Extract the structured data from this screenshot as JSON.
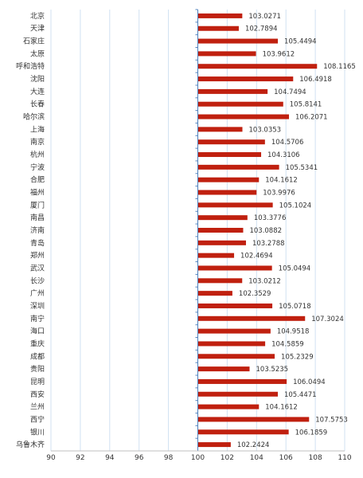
{
  "chart_data": {
    "type": "bar",
    "orientation": "horizontal",
    "categories": [
      "北京",
      "天津",
      "石家庄",
      "太原",
      "呼和浩特",
      "沈阳",
      "大连",
      "长春",
      "哈尔滨",
      "上海",
      "南京",
      "杭州",
      "宁波",
      "合肥",
      "福州",
      "厦门",
      "南昌",
      "济南",
      "青岛",
      "郑州",
      "武汉",
      "长沙",
      "广州",
      "深圳",
      "南宁",
      "海口",
      "重庆",
      "成都",
      "贵阳",
      "昆明",
      "西安",
      "兰州",
      "西宁",
      "银川",
      "乌鲁木齐"
    ],
    "values": [
      103.0271,
      102.7894,
      105.4494,
      103.9612,
      108.1165,
      106.4918,
      104.7494,
      105.8141,
      106.2071,
      103.0353,
      104.5706,
      104.3106,
      105.5341,
      104.1612,
      103.9976,
      105.1024,
      103.3776,
      103.0882,
      103.2788,
      102.4694,
      105.0494,
      103.0212,
      102.3529,
      105.0718,
      107.3024,
      104.9518,
      104.5859,
      105.2329,
      103.5235,
      106.0494,
      105.4471,
      104.1612,
      107.5753,
      106.1859,
      102.2424
    ],
    "value_labels": [
      "103.0271",
      "102.7894",
      "105.4494",
      "103.9612",
      "108.1165",
      "106.4918",
      "104.7494",
      "105.8141",
      "106.2071",
      "103.0353",
      "104.5706",
      "104.3106",
      "105.5341",
      "104.1612",
      "103.9976",
      "105.1024",
      "103.3776",
      "103.0882",
      "103.2788",
      "102.4694",
      "105.0494",
      "103.0212",
      "102.3529",
      "105.0718",
      "107.3024",
      "104.9518",
      "104.5859",
      "105.2329",
      "103.5235",
      "106.0494",
      "105.4471",
      "104.1612",
      "107.5753",
      "106.1859",
      "102.2424"
    ],
    "baseline": 100,
    "xlim": [
      90,
      110
    ],
    "x_ticks": [
      "90",
      "92",
      "94",
      "96",
      "98",
      "100",
      "102",
      "104",
      "106",
      "108",
      "110"
    ],
    "grid": true,
    "bar_color": "#C0200F",
    "grid_color": "#D0E1F2",
    "axis_color": "#4F81BD",
    "title": "",
    "xlabel": "",
    "ylabel": ""
  }
}
